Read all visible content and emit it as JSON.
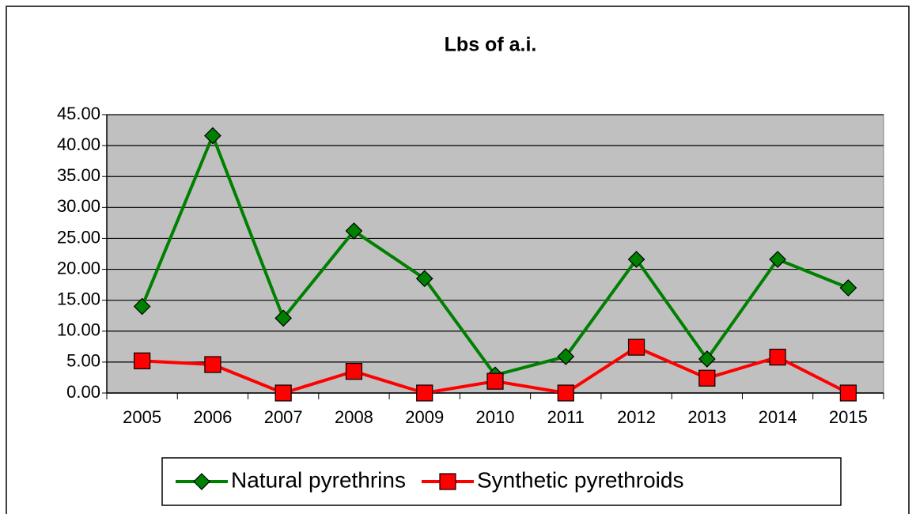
{
  "chart_data": {
    "type": "line",
    "title": "Lbs of a.i.",
    "categories": [
      "2005",
      "2006",
      "2007",
      "2008",
      "2009",
      "2010",
      "2011",
      "2012",
      "2013",
      "2014",
      "2015"
    ],
    "series": [
      {
        "name": "Natural pyrethrins",
        "color": "#008000",
        "marker": "diamond",
        "values": [
          14.0,
          41.6,
          12.1,
          26.2,
          18.5,
          2.9,
          5.9,
          21.6,
          5.5,
          21.6,
          17.0
        ]
      },
      {
        "name": "Synthetic pyrethroids",
        "color": "#ff0000",
        "marker": "square",
        "values": [
          5.2,
          4.6,
          0,
          3.5,
          0,
          1.9,
          0,
          7.4,
          2.4,
          5.8,
          0
        ]
      }
    ],
    "ylim": [
      0,
      45
    ],
    "yticks": [
      {
        "value": 0,
        "label": "0.00"
      },
      {
        "value": 5,
        "label": "5.00"
      },
      {
        "value": 10,
        "label": "10.00"
      },
      {
        "value": 15,
        "label": "15.00"
      },
      {
        "value": 20,
        "label": "20.00"
      },
      {
        "value": 25,
        "label": "25.00"
      },
      {
        "value": 30,
        "label": "30.00"
      },
      {
        "value": 35,
        "label": "35.00"
      },
      {
        "value": 40,
        "label": "40.00"
      },
      {
        "value": 45,
        "label": "45.00"
      }
    ],
    "grid": true,
    "legend": "bottom",
    "plot_background": "#c0c0c0"
  }
}
